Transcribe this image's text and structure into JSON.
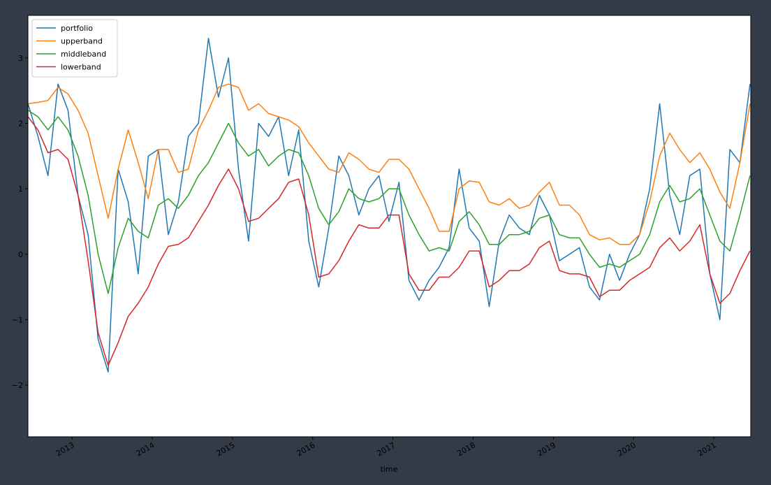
{
  "chart_data": {
    "type": "line",
    "xlabel": "time",
    "x": [
      2012.45,
      2012.575,
      2012.7,
      2012.825,
      2012.95,
      2013.075,
      2013.2,
      2013.325,
      2013.45,
      2013.575,
      2013.7,
      2013.825,
      2013.95,
      2014.075,
      2014.2,
      2014.325,
      2014.45,
      2014.575,
      2014.7,
      2014.825,
      2014.95,
      2015.075,
      2015.2,
      2015.325,
      2015.45,
      2015.575,
      2015.7,
      2015.825,
      2015.95,
      2016.075,
      2016.2,
      2016.325,
      2016.45,
      2016.575,
      2016.7,
      2016.825,
      2016.95,
      2017.075,
      2017.2,
      2017.325,
      2017.45,
      2017.575,
      2017.7,
      2017.825,
      2017.95,
      2018.075,
      2018.2,
      2018.325,
      2018.45,
      2018.575,
      2018.7,
      2018.825,
      2018.95,
      2019.075,
      2019.2,
      2019.325,
      2019.45,
      2019.575,
      2019.7,
      2019.825,
      2019.95,
      2020.075,
      2020.2,
      2020.325,
      2020.45,
      2020.575,
      2020.7,
      2020.825,
      2020.95,
      2021.075,
      2021.2,
      2021.325,
      2021.45
    ],
    "series": [
      {
        "name": "portfolio",
        "color": "#1f77b4",
        "values": [
          2.3,
          1.8,
          1.2,
          2.6,
          2.2,
          0.9,
          0.3,
          -1.3,
          -1.8,
          1.3,
          0.8,
          -0.3,
          1.5,
          1.6,
          0.3,
          0.8,
          1.8,
          2.0,
          3.3,
          2.4,
          3.0,
          1.3,
          0.2,
          2.0,
          1.8,
          2.1,
          1.2,
          1.9,
          0.2,
          -0.5,
          0.4,
          1.5,
          1.2,
          0.6,
          1.0,
          1.2,
          0.5,
          1.1,
          -0.4,
          -0.7,
          -0.4,
          -0.2,
          0.1,
          1.3,
          0.4,
          0.2,
          -0.8,
          0.2,
          0.6,
          0.4,
          0.3,
          0.9,
          0.6,
          -0.1,
          0.0,
          0.1,
          -0.5,
          -0.7,
          0.0,
          -0.4,
          0.0,
          0.3,
          1.0,
          2.3,
          0.9,
          0.3,
          1.2,
          1.3,
          -0.3,
          -1.0,
          1.6,
          1.4,
          2.6
        ]
      },
      {
        "name": "upperband",
        "color": "#ff7f0e",
        "values": [
          2.3,
          2.32,
          2.35,
          2.55,
          2.45,
          2.2,
          1.85,
          1.2,
          0.55,
          1.3,
          1.9,
          1.4,
          0.85,
          1.6,
          1.6,
          1.25,
          1.3,
          1.9,
          2.2,
          2.55,
          2.6,
          2.55,
          2.2,
          2.3,
          2.15,
          2.1,
          2.05,
          1.95,
          1.7,
          1.5,
          1.3,
          1.25,
          1.55,
          1.45,
          1.3,
          1.25,
          1.45,
          1.45,
          1.3,
          1.0,
          0.7,
          0.35,
          0.35,
          1.0,
          1.12,
          1.1,
          0.8,
          0.75,
          0.85,
          0.7,
          0.75,
          0.95,
          1.1,
          0.75,
          0.75,
          0.6,
          0.3,
          0.22,
          0.25,
          0.15,
          0.15,
          0.3,
          0.8,
          1.5,
          1.85,
          1.6,
          1.4,
          1.55,
          1.3,
          0.95,
          0.7,
          1.4,
          2.3
        ]
      },
      {
        "name": "middleband",
        "color": "#2ca02c",
        "values": [
          2.2,
          2.1,
          1.9,
          2.1,
          1.9,
          1.5,
          0.9,
          0.0,
          -0.6,
          0.1,
          0.55,
          0.35,
          0.25,
          0.75,
          0.85,
          0.7,
          0.9,
          1.2,
          1.4,
          1.7,
          2.0,
          1.7,
          1.5,
          1.6,
          1.35,
          1.5,
          1.6,
          1.55,
          1.2,
          0.7,
          0.45,
          0.65,
          1.0,
          0.85,
          0.8,
          0.85,
          1.0,
          1.0,
          0.6,
          0.3,
          0.05,
          0.1,
          0.05,
          0.5,
          0.65,
          0.45,
          0.15,
          0.15,
          0.3,
          0.3,
          0.35,
          0.55,
          0.6,
          0.3,
          0.25,
          0.25,
          0.0,
          -0.2,
          -0.15,
          -0.2,
          -0.1,
          0.0,
          0.3,
          0.8,
          1.05,
          0.8,
          0.85,
          1.0,
          0.6,
          0.2,
          0.05,
          0.6,
          1.2
        ]
      },
      {
        "name": "lowerband",
        "color": "#d62728",
        "values": [
          2.1,
          1.9,
          1.55,
          1.6,
          1.45,
          0.9,
          -0.1,
          -1.2,
          -1.7,
          -1.35,
          -0.95,
          -0.75,
          -0.5,
          -0.15,
          0.12,
          0.15,
          0.25,
          0.5,
          0.75,
          1.05,
          1.3,
          1.0,
          0.5,
          0.55,
          0.7,
          0.85,
          1.1,
          1.15,
          0.6,
          -0.35,
          -0.3,
          -0.1,
          0.2,
          0.45,
          0.4,
          0.4,
          0.6,
          0.6,
          -0.3,
          -0.55,
          -0.55,
          -0.35,
          -0.35,
          -0.2,
          0.05,
          0.05,
          -0.5,
          -0.4,
          -0.25,
          -0.25,
          -0.15,
          0.1,
          0.2,
          -0.25,
          -0.3,
          -0.3,
          -0.35,
          -0.65,
          -0.55,
          -0.55,
          -0.4,
          -0.3,
          -0.2,
          0.1,
          0.25,
          0.05,
          0.2,
          0.45,
          -0.3,
          -0.75,
          -0.6,
          -0.25,
          0.05
        ]
      }
    ],
    "xlim": [
      2012.45,
      2021.46
    ],
    "xticks": [
      2013,
      2014,
      2015,
      2016,
      2017,
      2018,
      2019,
      2020,
      2021
    ],
    "ylim": [
      -2.79,
      3.65
    ],
    "yticks": [
      {
        "value": -2,
        "label": "−2"
      },
      {
        "value": -1,
        "label": "−1"
      },
      0,
      1,
      2,
      3
    ],
    "legend": "upper left"
  }
}
